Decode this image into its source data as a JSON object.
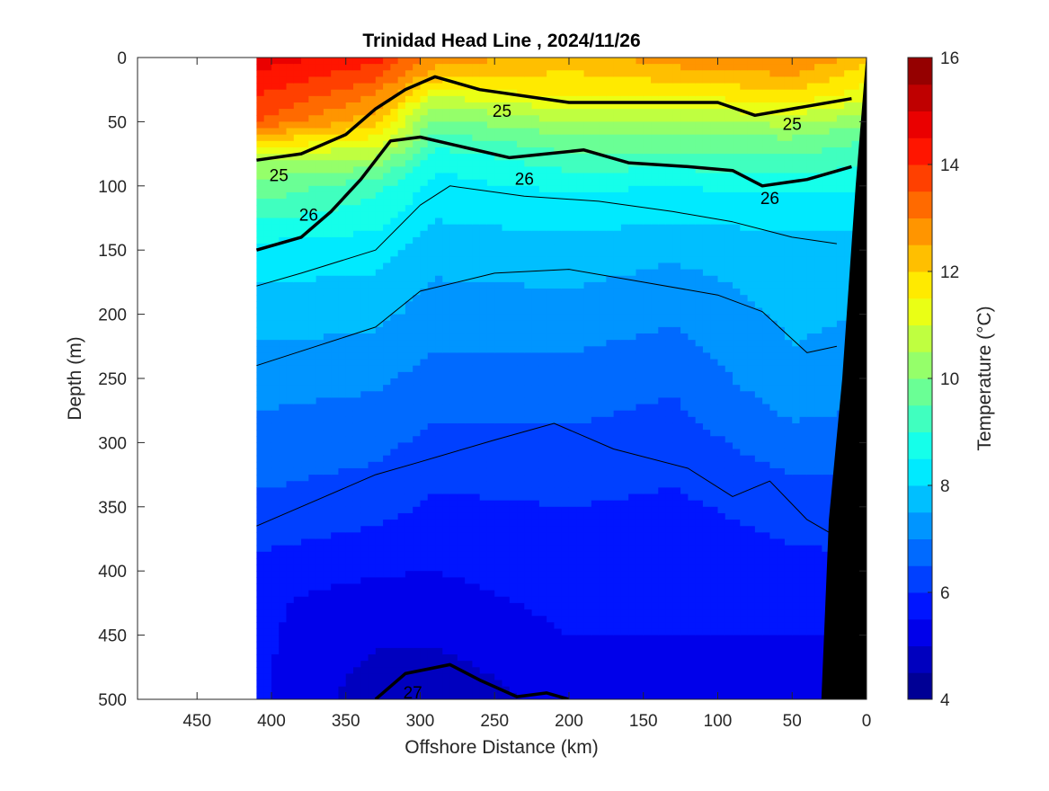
{
  "chart_data": {
    "type": "heatmap",
    "title": "Trinidad Head Line , 2024/11/26",
    "xlabel": "Offshore Distance (km)",
    "ylabel": "Depth (m)",
    "colorbar_label": "Temperature (°C)",
    "xlim": [
      490,
      0
    ],
    "ylim": [
      0,
      500
    ],
    "x_ticks": [
      450,
      400,
      350,
      300,
      250,
      200,
      150,
      100,
      50,
      0
    ],
    "y_ticks": [
      0,
      50,
      100,
      150,
      200,
      250,
      300,
      350,
      400,
      450,
      500
    ],
    "colorbar_range": [
      4,
      16
    ],
    "colorbar_ticks": [
      4,
      6,
      8,
      10,
      12,
      14,
      16
    ],
    "colormap": "jet",
    "data_extent_km": [
      410,
      0
    ],
    "temperature_profiles": [
      {
        "x": 410,
        "t_by_depth": [
          [
            0,
            14.8
          ],
          [
            50,
            13.5
          ],
          [
            80,
            10.5
          ],
          [
            150,
            8.3
          ],
          [
            250,
            7.2
          ],
          [
            350,
            6.4
          ],
          [
            420,
            5.6
          ],
          [
            500,
            5.6
          ]
        ]
      },
      {
        "x": 330,
        "t_by_depth": [
          [
            0,
            14.2
          ],
          [
            50,
            12.2
          ],
          [
            100,
            9.2
          ],
          [
            150,
            8.2
          ],
          [
            250,
            7.1
          ],
          [
            350,
            6.2
          ],
          [
            420,
            5.3
          ],
          [
            500,
            4.7
          ]
        ]
      },
      {
        "x": 290,
        "t_by_depth": [
          [
            0,
            12.8
          ],
          [
            15,
            12.2
          ],
          [
            40,
            10.3
          ],
          [
            80,
            8.6
          ],
          [
            150,
            7.7
          ],
          [
            250,
            6.8
          ],
          [
            350,
            5.9
          ],
          [
            450,
            5.1
          ],
          [
            500,
            4.6
          ]
        ]
      },
      {
        "x": 200,
        "t_by_depth": [
          [
            0,
            12.2
          ],
          [
            30,
            11.6
          ],
          [
            60,
            10.0
          ],
          [
            100,
            8.6
          ],
          [
            150,
            7.8
          ],
          [
            250,
            6.8
          ],
          [
            350,
            6.0
          ],
          [
            450,
            5.5
          ],
          [
            500,
            5.2
          ]
        ]
      },
      {
        "x": 130,
        "t_by_depth": [
          [
            0,
            12.8
          ],
          [
            30,
            11.5
          ],
          [
            60,
            10.0
          ],
          [
            100,
            8.5
          ],
          [
            150,
            7.6
          ],
          [
            250,
            6.6
          ],
          [
            350,
            5.9
          ],
          [
            450,
            5.5
          ],
          [
            500,
            5.3
          ]
        ]
      },
      {
        "x": 50,
        "t_by_depth": [
          [
            0,
            13.1
          ],
          [
            30,
            11.8
          ],
          [
            60,
            10.1
          ],
          [
            110,
            8.4
          ],
          [
            150,
            7.8
          ],
          [
            250,
            7.4
          ],
          [
            350,
            6.2
          ],
          [
            450,
            5.5
          ],
          [
            500,
            5.3
          ]
        ]
      },
      {
        "x": 0,
        "t_by_depth": [
          [
            0,
            12.2
          ],
          [
            30,
            11.2
          ],
          [
            60,
            9.6
          ],
          [
            110,
            8.3
          ],
          [
            150,
            7.8
          ],
          [
            250,
            7.2
          ],
          [
            350,
            6.3
          ],
          [
            450,
            5.5
          ],
          [
            500,
            5.3
          ]
        ]
      }
    ],
    "bottom_topography_km_by_depth": [
      [
        0,
        0
      ],
      [
        100,
        7
      ],
      [
        250,
        16
      ],
      [
        360,
        25
      ],
      [
        500,
        30
      ]
    ],
    "density_contours": [
      {
        "label": "25",
        "bold": true,
        "points": [
          [
            410,
            80
          ],
          [
            380,
            75
          ],
          [
            350,
            60
          ],
          [
            330,
            40
          ],
          [
            310,
            25
          ],
          [
            290,
            15
          ],
          [
            260,
            25
          ],
          [
            200,
            35
          ],
          [
            150,
            35
          ],
          [
            100,
            35
          ],
          [
            75,
            45
          ],
          [
            50,
            40
          ],
          [
            10,
            32
          ]
        ]
      },
      {
        "label": "26",
        "bold": true,
        "points": [
          [
            410,
            150
          ],
          [
            380,
            140
          ],
          [
            360,
            120
          ],
          [
            340,
            95
          ],
          [
            320,
            65
          ],
          [
            300,
            62
          ],
          [
            270,
            70
          ],
          [
            240,
            78
          ],
          [
            190,
            72
          ],
          [
            160,
            82
          ],
          [
            120,
            85
          ],
          [
            90,
            88
          ],
          [
            70,
            100
          ],
          [
            40,
            95
          ],
          [
            10,
            85
          ]
        ]
      },
      {
        "label": "27",
        "bold": true,
        "points": [
          [
            330,
            500
          ],
          [
            310,
            480
          ],
          [
            280,
            473
          ],
          [
            260,
            485
          ],
          [
            235,
            498
          ],
          [
            215,
            495
          ],
          [
            200,
            500
          ]
        ]
      },
      {
        "label": "",
        "bold": false,
        "points": [
          [
            410,
            178
          ],
          [
            380,
            168
          ],
          [
            330,
            150
          ],
          [
            300,
            115
          ],
          [
            280,
            100
          ],
          [
            230,
            108
          ],
          [
            180,
            112
          ],
          [
            130,
            120
          ],
          [
            90,
            128
          ],
          [
            50,
            140
          ],
          [
            20,
            145
          ]
        ]
      },
      {
        "label": "",
        "bold": false,
        "points": [
          [
            410,
            240
          ],
          [
            370,
            225
          ],
          [
            330,
            210
          ],
          [
            300,
            182
          ],
          [
            250,
            168
          ],
          [
            200,
            165
          ],
          [
            150,
            175
          ],
          [
            100,
            185
          ],
          [
            70,
            198
          ],
          [
            40,
            230
          ],
          [
            20,
            225
          ]
        ]
      },
      {
        "label": "",
        "bold": false,
        "points": [
          [
            410,
            365
          ],
          [
            370,
            345
          ],
          [
            330,
            325
          ],
          [
            300,
            315
          ],
          [
            250,
            298
          ],
          [
            210,
            285
          ],
          [
            170,
            305
          ],
          [
            120,
            320
          ],
          [
            90,
            342
          ],
          [
            65,
            330
          ],
          [
            40,
            360
          ],
          [
            25,
            370
          ]
        ]
      }
    ]
  }
}
